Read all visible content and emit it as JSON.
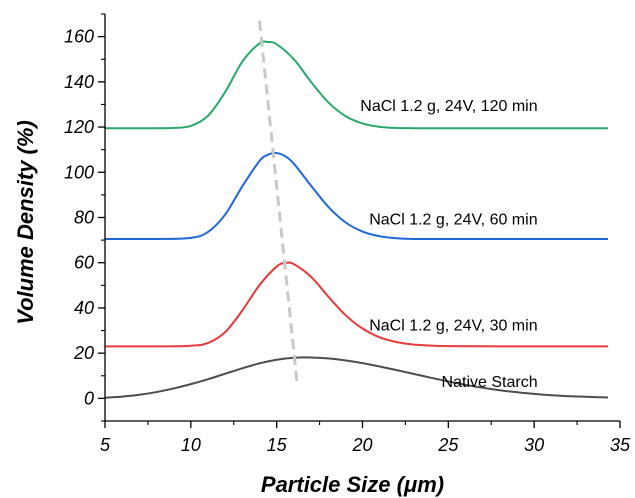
{
  "chart_data": {
    "type": "line",
    "title": "",
    "xlabel": "Particle Size (μm)",
    "ylabel": "Volume Density (%)",
    "xlim": [
      5,
      35
    ],
    "ylim": [
      -10,
      170
    ],
    "xticks": [
      5,
      10,
      15,
      20,
      25,
      30,
      35
    ],
    "yticks": [
      0,
      20,
      40,
      60,
      80,
      100,
      120,
      140,
      160
    ],
    "grid": false,
    "legend": "none",
    "series": [
      {
        "name": "Native Starch",
        "color": "#4d4d4d",
        "x": [
          5,
          6,
          7,
          8,
          9,
          10,
          11,
          12,
          13,
          14,
          15,
          16,
          17,
          18,
          19,
          20,
          21,
          22,
          23,
          24,
          25,
          26,
          27,
          28,
          29,
          30,
          31,
          32,
          33,
          34.3
        ],
        "y": [
          0.3,
          0.8,
          1.6,
          2.8,
          4.4,
          6.3,
          8.5,
          10.9,
          13.3,
          15.5,
          17.1,
          18.0,
          18.1,
          17.7,
          16.8,
          15.6,
          14.1,
          12.5,
          10.8,
          9.1,
          7.5,
          6.0,
          4.7,
          3.6,
          2.7,
          2.0,
          1.4,
          1.0,
          0.7,
          0.4
        ]
      },
      {
        "name": "NaCl 1.2 g, 24V, 30 min",
        "color": "#e8393b",
        "x": [
          5,
          8,
          10,
          11,
          12,
          13,
          14,
          15,
          15.5,
          16,
          17,
          18,
          19,
          20,
          21,
          22,
          23,
          25,
          30,
          34.3
        ],
        "y": [
          23,
          23,
          23.3,
          24.5,
          29.3,
          38.9,
          50.1,
          58.3,
          59.9,
          59.4,
          53.8,
          45.1,
          36.9,
          30.9,
          27.0,
          24.9,
          23.8,
          23.1,
          23,
          23
        ]
      },
      {
        "name": "NaCl 1.2 g, 24V, 60 min",
        "color": "#1f66d6",
        "x": [
          5,
          8,
          10,
          11,
          12,
          13,
          14,
          14.5,
          15,
          15.5,
          16,
          17,
          18,
          19,
          20,
          21,
          22,
          23,
          25,
          30,
          34.3
        ],
        "y": [
          70.5,
          70.5,
          71.0,
          73.6,
          81.3,
          93.8,
          105.0,
          107.8,
          108.5,
          107.1,
          103.8,
          94.1,
          84.8,
          77.9,
          73.8,
          71.7,
          70.8,
          70.5,
          70.5,
          70.5,
          70.5
        ]
      },
      {
        "name": "NaCl 1.2 g, 24V, 120 min",
        "color": "#2aa86b",
        "x": [
          5,
          8,
          9,
          10,
          11,
          12,
          13,
          14,
          14.5,
          15,
          16,
          17,
          18,
          19,
          20,
          21,
          22,
          23,
          25,
          30,
          34.3
        ],
        "y": [
          119.5,
          119.5,
          119.6,
          120.5,
          125.0,
          135.5,
          148.9,
          157.0,
          157.6,
          156.6,
          150.0,
          140.0,
          131.0,
          124.9,
          121.6,
          120.1,
          119.6,
          119.5,
          119.5,
          119.5,
          119.5
        ]
      }
    ],
    "annotations": [
      {
        "text": "Native Starch",
        "x": 30.2,
        "y": 5
      },
      {
        "text": "NaCl 1.2 g, 24V, 30 min",
        "x": 30.2,
        "y": 30
      },
      {
        "text": "NaCl 1.2 g, 24V, 60 min",
        "x": 30.2,
        "y": 77
      },
      {
        "text": "NaCl 1.2 g, 24V, 120 min",
        "x": 30.2,
        "y": 127
      }
    ],
    "peak_trend_line": {
      "color": "#c8c8c8",
      "style": "dashed",
      "x": [
        14.0,
        16.2
      ],
      "y": [
        167,
        6
      ]
    }
  }
}
